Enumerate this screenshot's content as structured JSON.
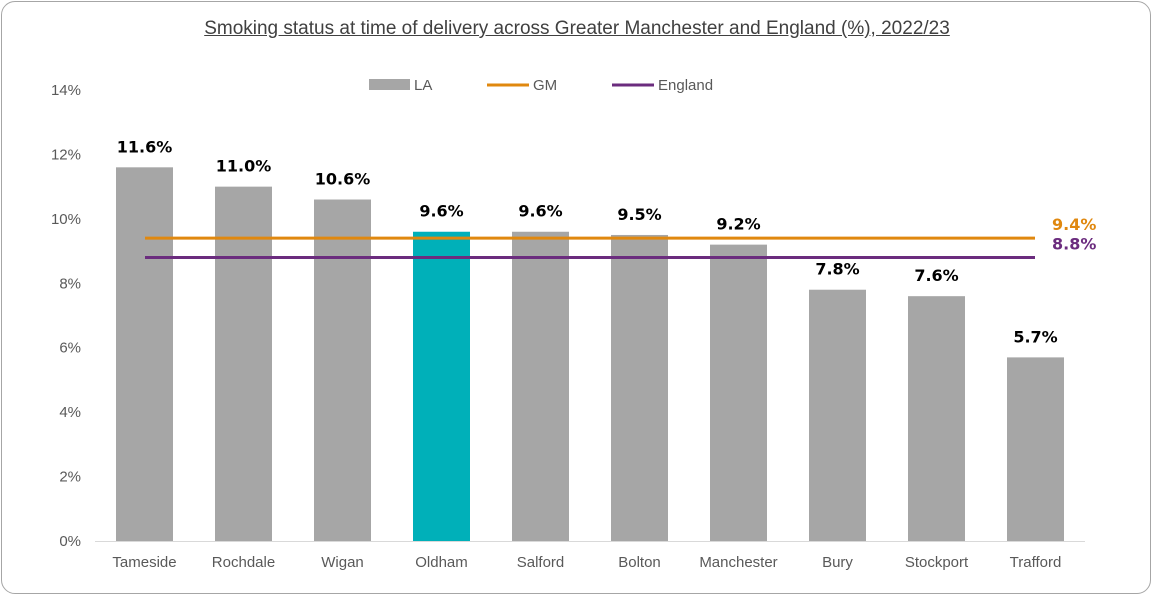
{
  "chart_data": {
    "type": "bar",
    "title": "Smoking status at time of delivery across Greater Manchester and England (%), 2022/23",
    "categories": [
      "Tameside",
      "Rochdale",
      "Wigan",
      "Oldham",
      "Salford",
      "Bolton",
      "Manchester",
      "Bury",
      "Stockport",
      "Trafford"
    ],
    "series": [
      {
        "name": "LA",
        "values": [
          11.6,
          11.0,
          10.6,
          9.6,
          9.6,
          9.5,
          9.2,
          7.8,
          7.6,
          5.7
        ],
        "labels": [
          "11.6%",
          "11.0%",
          "10.6%",
          "9.6%",
          "9.6%",
          "9.5%",
          "9.2%",
          "7.8%",
          "7.6%",
          "5.7%"
        ],
        "color": "#a6a6a6",
        "highlight_category": "Oldham",
        "highlight_color": "#00b0b9"
      },
      {
        "name": "GM",
        "value": 9.4,
        "label": "9.4%",
        "color": "#e0880f",
        "kind": "reference-line"
      },
      {
        "name": "England",
        "value": 8.8,
        "label": "8.8%",
        "color": "#6b2c7e",
        "kind": "reference-line"
      }
    ],
    "ylim": [
      0,
      14
    ],
    "yticks": [
      0,
      2,
      4,
      6,
      8,
      10,
      12,
      14
    ],
    "ytick_labels": [
      "0%",
      "2%",
      "4%",
      "6%",
      "8%",
      "10%",
      "12%",
      "14%"
    ],
    "legend_position": "top-center",
    "grid": false
  }
}
